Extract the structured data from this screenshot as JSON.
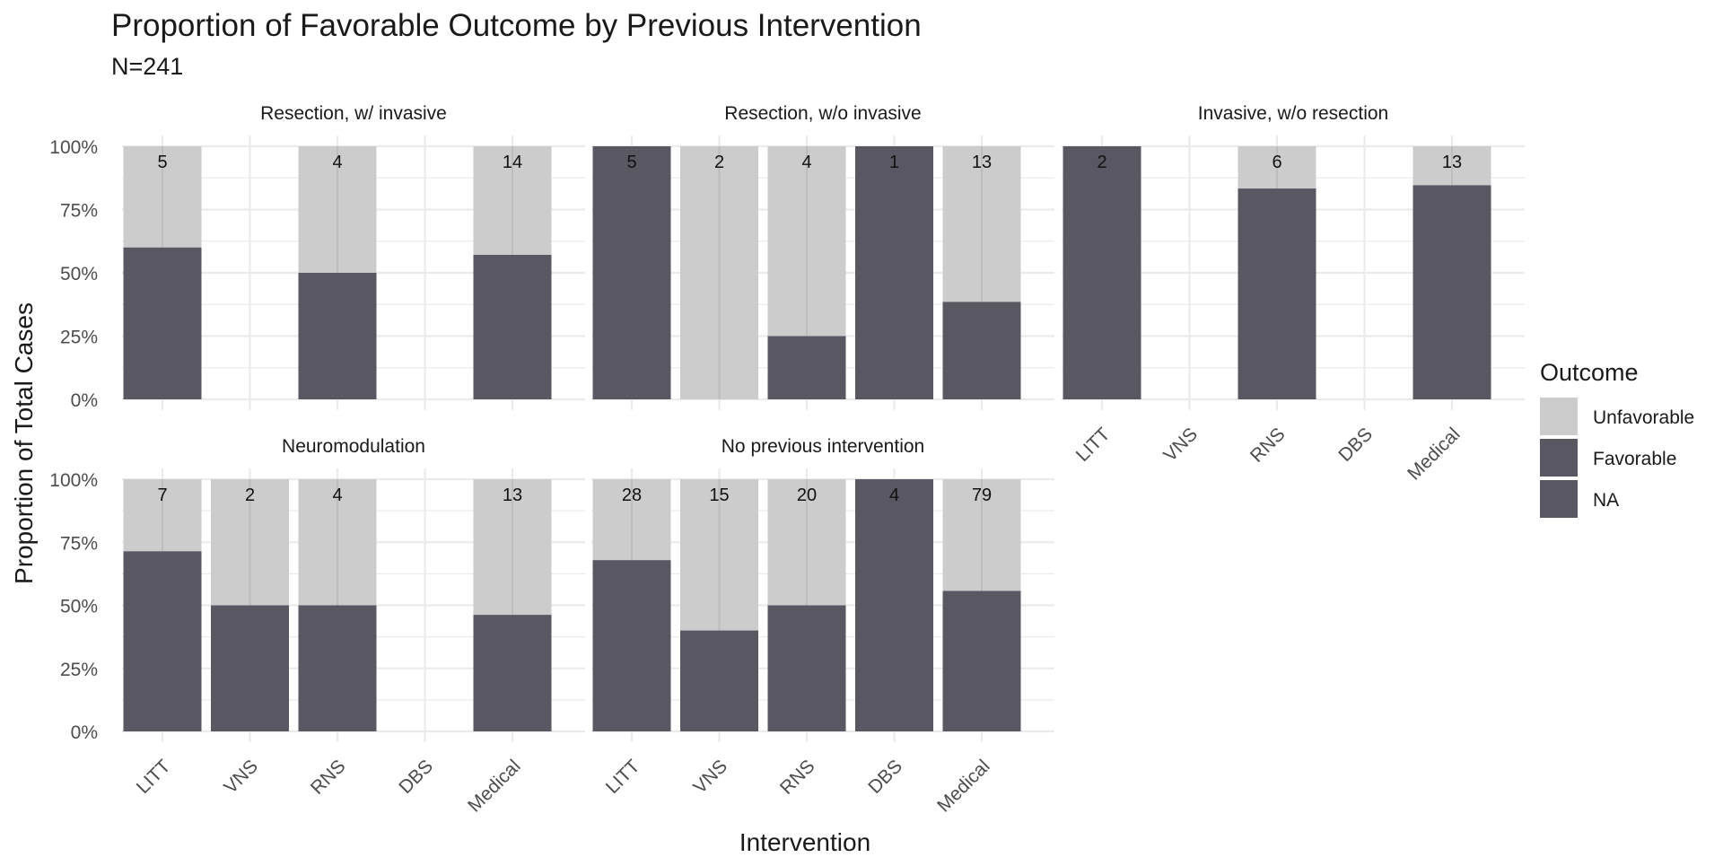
{
  "chart_data": {
    "type": "bar",
    "stacked": true,
    "normalized": true,
    "title": "Proportion of Favorable Outcome by Previous Intervention",
    "subtitle": "N=241",
    "xlabel": "Intervention",
    "ylabel": "Proportion of Total Cases",
    "categories": [
      "LITT",
      "VNS",
      "RNS",
      "DBS",
      "Medical"
    ],
    "y_ticks": [
      "0%",
      "25%",
      "50%",
      "75%",
      "100%"
    ],
    "ylim": [
      0,
      1
    ],
    "grid": true,
    "legend": {
      "title": "Outcome",
      "position": "right",
      "entries": [
        {
          "label": "Unfavorable",
          "color": "#cccccd"
        },
        {
          "label": "Favorable",
          "color": "#595762"
        },
        {
          "label": "NA",
          "color": "#595762"
        }
      ]
    },
    "colors": {
      "unfavorable": "#cccccd",
      "favorable": "#595762",
      "grid": "#ebebeb"
    },
    "facets": [
      {
        "label": "Resection, w/ invasive",
        "bars": [
          {
            "category": "LITT",
            "n": 5,
            "favorable": 0.6
          },
          {
            "category": "RNS",
            "n": 4,
            "favorable": 0.5
          },
          {
            "category": "Medical",
            "n": 14,
            "favorable": 0.571
          }
        ]
      },
      {
        "label": "Resection, w/o invasive",
        "bars": [
          {
            "category": "LITT",
            "n": 5,
            "favorable": 1.0
          },
          {
            "category": "VNS",
            "n": 2,
            "favorable": 0.0
          },
          {
            "category": "RNS",
            "n": 4,
            "favorable": 0.25
          },
          {
            "category": "DBS",
            "n": 1,
            "favorable": 1.0
          },
          {
            "category": "Medical",
            "n": 13,
            "favorable": 0.385
          }
        ]
      },
      {
        "label": "Invasive, w/o resection",
        "bars": [
          {
            "category": "LITT",
            "n": 2,
            "favorable": 1.0
          },
          {
            "category": "RNS",
            "n": 6,
            "favorable": 0.833
          },
          {
            "category": "Medical",
            "n": 13,
            "favorable": 0.846
          }
        ]
      },
      {
        "label": "Neuromodulation",
        "bars": [
          {
            "category": "LITT",
            "n": 7,
            "favorable": 0.714
          },
          {
            "category": "VNS",
            "n": 2,
            "favorable": 0.5
          },
          {
            "category": "RNS",
            "n": 4,
            "favorable": 0.5
          },
          {
            "category": "Medical",
            "n": 13,
            "favorable": 0.462
          }
        ]
      },
      {
        "label": "No previous intervention",
        "bars": [
          {
            "category": "LITT",
            "n": 28,
            "favorable": 0.679
          },
          {
            "category": "VNS",
            "n": 15,
            "favorable": 0.4
          },
          {
            "category": "RNS",
            "n": 20,
            "favorable": 0.5
          },
          {
            "category": "DBS",
            "n": 4,
            "favorable": 1.0
          },
          {
            "category": "Medical",
            "n": 79,
            "favorable": 0.557
          }
        ]
      }
    ]
  }
}
